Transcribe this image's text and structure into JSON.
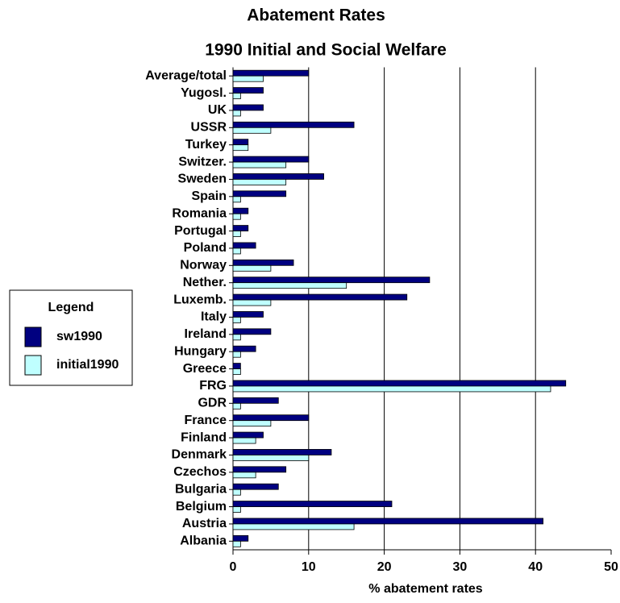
{
  "chart_data": {
    "type": "hbar",
    "title": "Abatement Rates",
    "subtitle": "1990 Initial and Social Welfare",
    "x_label": "% abatement rates",
    "legend_title": "Legend",
    "categories": [
      "Average/total",
      "Yugosl.",
      "UK",
      "USSR",
      "Turkey",
      "Switzer.",
      "Sweden",
      "Spain",
      "Romania",
      "Portugal",
      "Poland",
      "Norway",
      "Nether.",
      "Luxemb.",
      "Italy",
      "Ireland",
      "Hungary",
      "Greece",
      "FRG",
      "GDR",
      "France",
      "Finland",
      "Denmark",
      "Czechos",
      "Bulgaria",
      "Belgium",
      "Austria",
      "Albania"
    ],
    "series": [
      {
        "name": "sw1990",
        "color": "#000080",
        "values": [
          10,
          4,
          4,
          16,
          2,
          10,
          12,
          7,
          2,
          2,
          3,
          8,
          26,
          23,
          4,
          5,
          3,
          1,
          44,
          6,
          10,
          4,
          13,
          7,
          6,
          21,
          41,
          2
        ]
      },
      {
        "name": "initial1990",
        "color": "#bfffff",
        "values": [
          4,
          1,
          1,
          5,
          2,
          7,
          7,
          1,
          1,
          1,
          1,
          5,
          15,
          5,
          1,
          1,
          1,
          1,
          42,
          1,
          5,
          3,
          10,
          3,
          1,
          1,
          16,
          1
        ]
      }
    ],
    "xlim": [
      0,
      50
    ],
    "xticks": [
      0,
      10,
      20,
      30,
      40,
      50
    ],
    "grid": true
  }
}
